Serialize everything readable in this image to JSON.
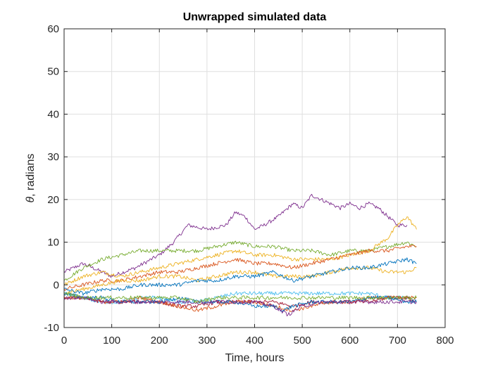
{
  "chart_data": {
    "type": "line",
    "title": "Unwrapped simulated data",
    "xlabel": "Time, hours",
    "ylabel_symbol": "θ",
    "ylabel_rest": ", radians",
    "xlim": [
      0,
      800
    ],
    "ylim": [
      -10,
      60
    ],
    "xticks": [
      "0",
      "100",
      "200",
      "300",
      "400",
      "500",
      "600",
      "700",
      "800"
    ],
    "yticks": [
      "-10",
      "0",
      "10",
      "20",
      "30",
      "40",
      "50",
      "60"
    ],
    "grid": true,
    "series": [
      {
        "color": "#7E2F8E",
        "x": [
          0,
          20,
          40,
          60,
          100,
          150,
          200,
          230,
          260,
          300,
          340,
          360,
          380,
          400,
          420,
          450,
          480,
          500,
          520,
          540,
          560,
          580,
          600,
          620,
          640,
          660,
          680,
          700,
          720
        ],
        "y": [
          3,
          4,
          5,
          4,
          2,
          4,
          7,
          10,
          14,
          13,
          14,
          17,
          16,
          13,
          14,
          16,
          19,
          18,
          21,
          20,
          19,
          18,
          19,
          18,
          19,
          18,
          16,
          14,
          14
        ]
      },
      {
        "color": "#77AC30",
        "x": [
          0,
          40,
          80,
          120,
          160,
          200,
          240,
          280,
          320,
          360,
          400,
          440,
          480,
          520,
          560,
          600,
          640,
          680,
          720,
          740
        ],
        "y": [
          1,
          4,
          6,
          7,
          8,
          8,
          8,
          8,
          9,
          10,
          9,
          9,
          8,
          8,
          7,
          8,
          8,
          9,
          10,
          9
        ]
      },
      {
        "color": "#EDB120",
        "x": [
          0,
          40,
          80,
          120,
          160,
          200,
          240,
          280,
          320,
          360,
          400,
          440,
          480,
          520,
          560,
          600,
          640,
          680,
          700,
          720,
          740
        ],
        "y": [
          0,
          2,
          3,
          2,
          3,
          4,
          5,
          6,
          7,
          8,
          7,
          7,
          6,
          6,
          6,
          7,
          8,
          11,
          14,
          16,
          13
        ]
      },
      {
        "color": "#D95319",
        "x": [
          0,
          40,
          80,
          120,
          160,
          200,
          240,
          280,
          320,
          360,
          400,
          440,
          480,
          520,
          560,
          600,
          640,
          680,
          720,
          740
        ],
        "y": [
          -1,
          0,
          1,
          1,
          2,
          3,
          3,
          4,
          5,
          6,
          5,
          5,
          4,
          5,
          6,
          7,
          8,
          8,
          9,
          9
        ]
      },
      {
        "color": "#EDB120",
        "x": [
          0,
          40,
          80,
          120,
          160,
          200,
          240,
          280,
          320,
          360,
          400,
          440,
          480,
          520,
          560,
          600,
          640,
          680,
          720,
          740
        ],
        "y": [
          -2,
          -1,
          0,
          1,
          1,
          2,
          2,
          1,
          2,
          3,
          3,
          2,
          2,
          2,
          3,
          4,
          4,
          3,
          3,
          4
        ]
      },
      {
        "color": "#0072BD",
        "x": [
          0,
          40,
          80,
          120,
          160,
          200,
          240,
          280,
          320,
          360,
          400,
          440,
          480,
          520,
          560,
          600,
          640,
          680,
          720,
          740
        ],
        "y": [
          -1,
          -2,
          -1,
          -1,
          0,
          0,
          0,
          1,
          1,
          2,
          2,
          3,
          1,
          2,
          3,
          4,
          4,
          5,
          6,
          5
        ]
      },
      {
        "color": "#4DBEEE",
        "x": [
          0,
          40,
          80,
          120,
          160,
          200,
          240,
          280,
          320,
          360,
          400,
          440,
          480,
          520,
          560,
          600,
          640,
          680,
          720,
          740
        ],
        "y": [
          -2,
          -3,
          -4,
          -4,
          -3,
          -3,
          -4,
          -4,
          -3,
          -2,
          -2,
          -2,
          -2,
          -2,
          -2,
          -2,
          -2,
          -3,
          -3,
          -4
        ]
      },
      {
        "color": "#A2142F",
        "x": [
          0,
          40,
          80,
          120,
          160,
          200,
          240,
          280,
          320,
          360,
          400,
          440,
          480,
          520,
          560,
          600,
          640,
          680,
          720,
          740
        ],
        "y": [
          -3,
          -3,
          -4,
          -4,
          -4,
          -4,
          -5,
          -5,
          -4,
          -4,
          -4,
          -4,
          -5,
          -4,
          -4,
          -4,
          -4,
          -3,
          -3,
          -4
        ]
      },
      {
        "color": "#D95319",
        "x": [
          0,
          40,
          80,
          120,
          160,
          200,
          240,
          280,
          320,
          360,
          400,
          440,
          480,
          520,
          560,
          600,
          640,
          680,
          720,
          740
        ],
        "y": [
          -3,
          -3,
          -4,
          -4,
          -3,
          -4,
          -5,
          -6,
          -5,
          -4,
          -4,
          -5,
          -6,
          -5,
          -4,
          -4,
          -3,
          -3,
          -3,
          -3
        ]
      },
      {
        "color": "#0072BD",
        "x": [
          0,
          40,
          80,
          120,
          160,
          200,
          240,
          280,
          320,
          360,
          400,
          440,
          460,
          480,
          520,
          560,
          600,
          640,
          680,
          720,
          740
        ],
        "y": [
          -2,
          -3,
          -3,
          -4,
          -4,
          -4,
          -3,
          -4,
          -4,
          -4,
          -5,
          -5,
          -6,
          -5,
          -4,
          -4,
          -4,
          -3,
          -3,
          -4,
          -4
        ]
      },
      {
        "color": "#7E2F8E",
        "x": [
          0,
          40,
          80,
          120,
          160,
          200,
          240,
          280,
          320,
          360,
          400,
          440,
          470,
          500,
          540,
          580,
          620,
          660,
          700,
          740
        ],
        "y": [
          -3,
          -3,
          -4,
          -4,
          -4,
          -4,
          -4,
          -4,
          -4,
          -4,
          -4,
          -5,
          -7,
          -5,
          -4,
          -4,
          -4,
          -4,
          -4,
          -4
        ]
      },
      {
        "color": "#77AC30",
        "x": [
          0,
          40,
          80,
          120,
          160,
          200,
          240,
          280,
          320,
          360,
          400,
          440,
          480,
          520,
          560,
          600,
          640,
          680,
          720,
          740
        ],
        "y": [
          -2,
          -3,
          -3,
          -3,
          -3,
          -3,
          -3,
          -4,
          -3,
          -3,
          -3,
          -3,
          -3,
          -3,
          -3,
          -3,
          -3,
          -3,
          -3,
          -3
        ]
      }
    ]
  }
}
